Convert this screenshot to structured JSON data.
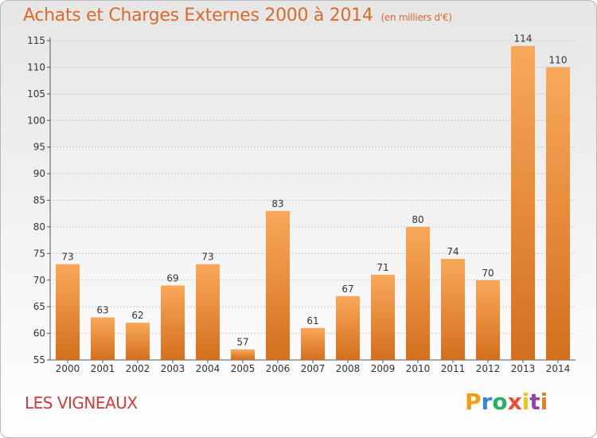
{
  "header": {
    "title": "Achats et Charges Externes 2000 à 2014",
    "subtitle": "(en milliers d'€)"
  },
  "footer": {
    "commune": "LES VIGNEAUX",
    "brand": "Proxiti"
  },
  "colors": {
    "title": "#d86a2a",
    "commune": "#d23b3b",
    "bar_top": "#f9a85a",
    "bar_bottom": "#d36f1e",
    "brand_letters": [
      "#f39c12",
      "#2e86de",
      "#27ae60",
      "#e74c3c",
      "#f1c40f",
      "#8e44ad",
      "#e67e22"
    ]
  },
  "chart_data": {
    "type": "bar",
    "title": "Achats et Charges Externes 2000 à 2014",
    "subtitle": "(en milliers d'€)",
    "categories": [
      "2000",
      "2001",
      "2002",
      "2003",
      "2004",
      "2005",
      "2006",
      "2007",
      "2008",
      "2009",
      "2010",
      "2011",
      "2012",
      "2013",
      "2014"
    ],
    "values": [
      73,
      63,
      62,
      69,
      73,
      57,
      83,
      61,
      67,
      71,
      80,
      74,
      70,
      114,
      110
    ],
    "ylim": [
      55,
      115
    ],
    "yticks": [
      55,
      60,
      65,
      70,
      75,
      80,
      85,
      90,
      95,
      100,
      105,
      110,
      115
    ],
    "grid": true,
    "data_labels": true
  }
}
